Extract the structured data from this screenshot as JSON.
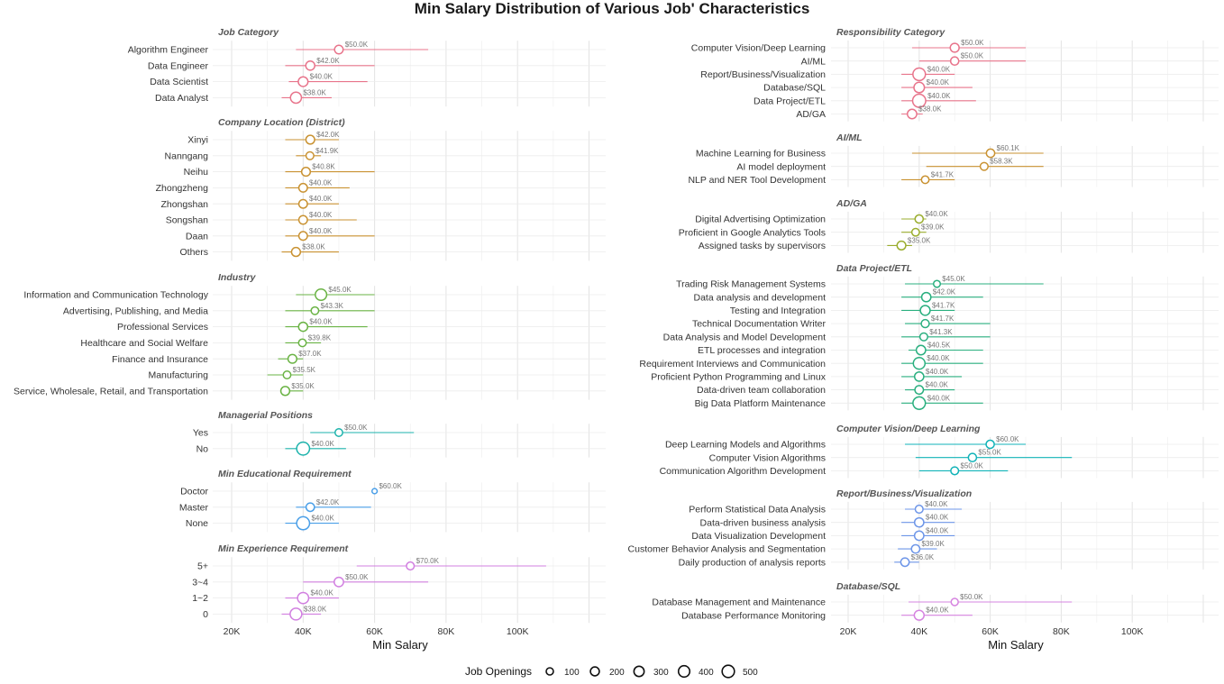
{
  "chart_data": {
    "type": "dot-range",
    "title": "Min Salary Distribution of Various Job' Characteristics",
    "xlabel": "Min Salary",
    "x_ticks": [
      "20K",
      "40K",
      "60K",
      "80K",
      "100K"
    ],
    "x_tick_values": [
      20000,
      40000,
      60000,
      80000,
      100000
    ],
    "xlim": [
      15000,
      122000
    ],
    "legend": {
      "title": "Job Openings",
      "sizes": [
        100,
        200,
        300,
        400,
        500
      ],
      "labels": [
        "100",
        "200",
        "300",
        "400",
        "500"
      ],
      "position": "bottom"
    },
    "panels": [
      {
        "column": "left",
        "facets": [
          {
            "name": "Job Category",
            "color": "#E8748B",
            "items": [
              {
                "label": "Algorithm Engineer",
                "value": 50000,
                "value_label": "$50.0K",
                "min": 38000,
                "max": 75000,
                "openings": 150
              },
              {
                "label": "Data Engineer",
                "value": 42000,
                "value_label": "$42.0K",
                "min": 35000,
                "max": 60000,
                "openings": 180
              },
              {
                "label": "Data Scientist",
                "value": 40000,
                "value_label": "$40.0K",
                "min": 36000,
                "max": 58000,
                "openings": 220
              },
              {
                "label": "Data Analyst",
                "value": 38000,
                "value_label": "$38.0K",
                "min": 34000,
                "max": 48000,
                "openings": 320
              }
            ]
          },
          {
            "name": "Company Location (District)",
            "color": "#C99232",
            "items": [
              {
                "label": "Xinyi",
                "value": 42000,
                "value_label": "$42.0K",
                "min": 35000,
                "max": 50000,
                "openings": 160
              },
              {
                "label": "Nanngang",
                "value": 41900,
                "value_label": "$41.9K",
                "min": 38000,
                "max": 45000,
                "openings": 110
              },
              {
                "label": "Neihu",
                "value": 40800,
                "value_label": "$40.8K",
                "min": 35000,
                "max": 60000,
                "openings": 160
              },
              {
                "label": "Zhongzheng",
                "value": 40000,
                "value_label": "$40.0K",
                "min": 35000,
                "max": 53000,
                "openings": 150
              },
              {
                "label": "Zhongshan",
                "value": 40000,
                "value_label": "$40.0K",
                "min": 35000,
                "max": 50000,
                "openings": 150
              },
              {
                "label": "Songshan",
                "value": 40000,
                "value_label": "$40.0K",
                "min": 35000,
                "max": 55000,
                "openings": 150
              },
              {
                "label": "Daan",
                "value": 40000,
                "value_label": "$40.0K",
                "min": 35000,
                "max": 60000,
                "openings": 150
              },
              {
                "label": "Others",
                "value": 38000,
                "value_label": "$38.0K",
                "min": 34000,
                "max": 50000,
                "openings": 170
              }
            ]
          },
          {
            "name": "Industry",
            "color": "#6AB344",
            "items": [
              {
                "label": "Information and Communication Technology",
                "value": 45000,
                "value_label": "$45.0K",
                "min": 38000,
                "max": 60000,
                "openings": 350
              },
              {
                "label": "Advertising, Publishing, and Media",
                "value": 43300,
                "value_label": "$43.3K",
                "min": 35000,
                "max": 60000,
                "openings": 100
              },
              {
                "label": "Professional Services",
                "value": 40000,
                "value_label": "$40.0K",
                "min": 35000,
                "max": 58000,
                "openings": 180
              },
              {
                "label": "Healthcare and Social Welfare",
                "value": 39800,
                "value_label": "$39.8K",
                "min": 35000,
                "max": 45000,
                "openings": 100
              },
              {
                "label": "Finance and Insurance",
                "value": 37000,
                "value_label": "$37.0K",
                "min": 33000,
                "max": 40000,
                "openings": 160
              },
              {
                "label": "Manufacturing",
                "value": 35500,
                "value_label": "$35.5K",
                "min": 30000,
                "max": 40000,
                "openings": 100
              },
              {
                "label": "Service, Wholesale, Retail, and Transportation",
                "value": 35000,
                "value_label": "$35.0K",
                "min": 34000,
                "max": 40000,
                "openings": 170
              }
            ]
          },
          {
            "name": "Managerial Positions",
            "color": "#1DB3AC",
            "items": [
              {
                "label": "Yes",
                "value": 50000,
                "value_label": "$50.0K",
                "min": 42000,
                "max": 71000,
                "openings": 100
              },
              {
                "label": "No",
                "value": 40000,
                "value_label": "$40.0K",
                "min": 35000,
                "max": 52000,
                "openings": 500
              }
            ]
          },
          {
            "name": "Min Educational Requirement",
            "color": "#4A9FE8",
            "items": [
              {
                "label": "Doctor",
                "value": 60000,
                "value_label": "$60.0K",
                "min": 60000,
                "max": 60000,
                "openings": 20
              },
              {
                "label": "Master",
                "value": 42000,
                "value_label": "$42.0K",
                "min": 38000,
                "max": 59000,
                "openings": 140
              },
              {
                "label": "None",
                "value": 40000,
                "value_label": "$40.0K",
                "min": 35000,
                "max": 50000,
                "openings": 500
              }
            ]
          },
          {
            "name": "Min Experience Requirement",
            "color": "#D17FE0",
            "items": [
              {
                "label": "5+",
                "value": 70000,
                "value_label": "$70.0K",
                "min": 55000,
                "max": 108000,
                "openings": 110
              },
              {
                "label": "3~4",
                "value": 50000,
                "value_label": "$50.0K",
                "min": 40000,
                "max": 75000,
                "openings": 200
              },
              {
                "label": "1~2",
                "value": 40000,
                "value_label": "$40.0K",
                "min": 35000,
                "max": 50000,
                "openings": 330
              },
              {
                "label": "0",
                "value": 38000,
                "value_label": "$38.0K",
                "min": 34000,
                "max": 45000,
                "openings": 380
              }
            ]
          }
        ]
      },
      {
        "column": "right",
        "facets": [
          {
            "name": "Responsibility Category",
            "color": "#E8748B",
            "items": [
              {
                "label": "Computer Vision/Deep Learning",
                "value": 50000,
                "value_label": "$50.0K",
                "min": 38000,
                "max": 70000,
                "openings": 170
              },
              {
                "label": "AI/ML",
                "value": 50000,
                "value_label": "$50.0K",
                "min": 40000,
                "max": 70000,
                "openings": 130
              },
              {
                "label": "Report/Business/Visualization",
                "value": 40000,
                "value_label": "$40.0K",
                "min": 35000,
                "max": 50000,
                "openings": 460
              },
              {
                "label": "Database/SQL",
                "value": 40000,
                "value_label": "$40.0K",
                "min": 35000,
                "max": 55000,
                "openings": 280
              },
              {
                "label": "Data Project/ETL",
                "value": 40000,
                "value_label": "$40.0K",
                "min": 35000,
                "max": 56000,
                "openings": 520
              },
              {
                "label": "AD/GA",
                "value": 38000,
                "value_label": "$38.0K",
                "min": 35000,
                "max": 41000,
                "openings": 200
              }
            ]
          },
          {
            "name": "AI/ML",
            "color": "#C99232",
            "items": [
              {
                "label": "Machine Learning for Business",
                "value": 60100,
                "value_label": "$60.1K",
                "min": 38000,
                "max": 75000,
                "openings": 140
              },
              {
                "label": "AI model deployment",
                "value": 58300,
                "value_label": "$58.3K",
                "min": 42000,
                "max": 75000,
                "openings": 110
              },
              {
                "label": "NLP and NER Tool Development",
                "value": 41700,
                "value_label": "$41.7K",
                "min": 35000,
                "max": 50000,
                "openings": 100
              }
            ]
          },
          {
            "name": "AD/GA",
            "color": "#9AAD2E",
            "items": [
              {
                "label": "Digital Advertising Optimization",
                "value": 40000,
                "value_label": "$40.0K",
                "min": 35000,
                "max": 42000,
                "openings": 130
              },
              {
                "label": "Proficient in Google Analytics Tools",
                "value": 39000,
                "value_label": "$39.0K",
                "min": 35000,
                "max": 42000,
                "openings": 100
              },
              {
                "label": "Assigned tasks by supervisors",
                "value": 35000,
                "value_label": "$35.0K",
                "min": 31000,
                "max": 38000,
                "openings": 160
              }
            ]
          },
          {
            "name": "Data Project/ETL",
            "color": "#2AAF7F",
            "items": [
              {
                "label": "Trading Risk Management Systems",
                "value": 45000,
                "value_label": "$45.0K",
                "min": 36000,
                "max": 75000,
                "openings": 70
              },
              {
                "label": "Data analysis and development",
                "value": 42000,
                "value_label": "$42.0K",
                "min": 35000,
                "max": 58000,
                "openings": 190
              },
              {
                "label": "Testing and Integration",
                "value": 41700,
                "value_label": "$41.7K",
                "min": 35000,
                "max": 50000,
                "openings": 230
              },
              {
                "label": "Technical Documentation Writer",
                "value": 41700,
                "value_label": "$41.7K",
                "min": 36000,
                "max": 60000,
                "openings": 120
              },
              {
                "label": "Data Analysis and Model Development",
                "value": 41300,
                "value_label": "$41.3K",
                "min": 35000,
                "max": 60000,
                "openings": 110
              },
              {
                "label": "ETL processes and integration",
                "value": 40500,
                "value_label": "$40.5K",
                "min": 37000,
                "max": 58000,
                "openings": 200
              },
              {
                "label": "Requirement Interviews and Communication",
                "value": 40000,
                "value_label": "$40.0K",
                "min": 35000,
                "max": 58000,
                "openings": 380
              },
              {
                "label": "Proficient Python Programming and Linux",
                "value": 40000,
                "value_label": "$40.0K",
                "min": 35000,
                "max": 52000,
                "openings": 190
              },
              {
                "label": "Data-driven team collaboration",
                "value": 40000,
                "value_label": "$40.0K",
                "min": 36000,
                "max": 50000,
                "openings": 150
              },
              {
                "label": "Big Data Platform Maintenance",
                "value": 40000,
                "value_label": "$40.0K",
                "min": 35000,
                "max": 58000,
                "openings": 450
              }
            ]
          },
          {
            "name": "Computer Vision/Deep Learning",
            "color": "#12B3B8",
            "items": [
              {
                "label": "Deep Learning Models and Algorithms",
                "value": 60000,
                "value_label": "$60.0K",
                "min": 36000,
                "max": 70000,
                "openings": 130
              },
              {
                "label": "Computer Vision Algorithms",
                "value": 55000,
                "value_label": "$55.0K",
                "min": 39000,
                "max": 83000,
                "openings": 130
              },
              {
                "label": "Communication Algorithm Development",
                "value": 50000,
                "value_label": "$50.0K",
                "min": 40000,
                "max": 65000,
                "openings": 110
              }
            ]
          },
          {
            "name": "Report/Business/Visualization",
            "color": "#6E96E8",
            "items": [
              {
                "label": "Perform Statistical Data Analysis",
                "value": 40000,
                "value_label": "$40.0K",
                "min": 36000,
                "max": 52000,
                "openings": 110
              },
              {
                "label": "Data-driven business analysis",
                "value": 40000,
                "value_label": "$40.0K",
                "min": 35000,
                "max": 50000,
                "openings": 190
              },
              {
                "label": "Data Visualization Development",
                "value": 40000,
                "value_label": "$40.0K",
                "min": 35000,
                "max": 50000,
                "openings": 200
              },
              {
                "label": "Customer Behavior Analysis and Segmentation",
                "value": 39000,
                "value_label": "$39.0K",
                "min": 34000,
                "max": 45000,
                "openings": 140
              },
              {
                "label": "Daily production of analysis reports",
                "value": 36000,
                "value_label": "$36.0K",
                "min": 33000,
                "max": 40000,
                "openings": 140
              }
            ]
          },
          {
            "name": "Database/SQL",
            "color": "#D684E0",
            "items": [
              {
                "label": "Database Management and Maintenance",
                "value": 50000,
                "value_label": "$50.0K",
                "min": 37000,
                "max": 83000,
                "openings": 80
              },
              {
                "label": "Database Performance Monitoring",
                "value": 40000,
                "value_label": "$40.0K",
                "min": 35000,
                "max": 55000,
                "openings": 230
              }
            ]
          }
        ]
      }
    ]
  }
}
